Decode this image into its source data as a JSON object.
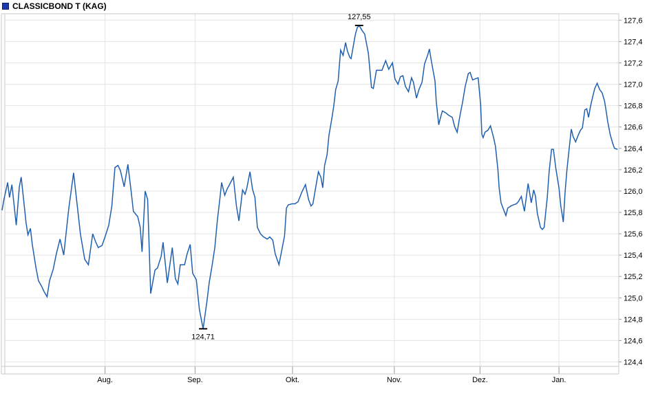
{
  "header": {
    "title": "CLASSICBOND T (KAG)",
    "legend_square_color": "#1c3aae"
  },
  "styles": {
    "grid_color": "#e3e3e3",
    "frame_color": "#c9c9c9",
    "tick_color": "#9a9a9a",
    "axis_text_color": "#000000",
    "annotation_text_color": "#a0a0a0",
    "line_color": "#1f5fae",
    "background_color": "#ffffff"
  },
  "chart_data": {
    "type": "line",
    "title": "CLASSICBOND T (KAG)",
    "xlabel": "",
    "ylabel": "",
    "grid": true,
    "legend_position": "none",
    "y_axis": {
      "side": "right",
      "min": 124.4,
      "max": 127.6,
      "step": 0.2,
      "tick_labels_top_to_bottom": [
        "127,6",
        "127,4",
        "127,2",
        "127,0",
        "126,8",
        "126,6",
        "126,4",
        "126,2",
        "126,0",
        "125,8",
        "125,6",
        "125,4",
        "125,2",
        "125,0",
        "124,8",
        "124,6",
        "124,4"
      ]
    },
    "x_axis": {
      "labels": [
        "Aug.",
        "Sep.",
        "Okt.",
        "Nov.",
        "Dez.",
        "Jan."
      ],
      "positions_pct": [
        16.7,
        31.3,
        47.1,
        63.6,
        77.5,
        90.3
      ]
    },
    "annotations": {
      "max": {
        "label": "127,55",
        "value": 127.55,
        "t_pct": 57.9
      },
      "min": {
        "label": "124,71",
        "value": 124.71,
        "t_pct": 32.6
      }
    },
    "series": [
      {
        "name": "CLASSICBOND T (KAG)",
        "points": [
          [
            0.0,
            125.82
          ],
          [
            0.3,
            125.92
          ],
          [
            0.9,
            126.08
          ],
          [
            1.2,
            125.94
          ],
          [
            1.6,
            126.06
          ],
          [
            2.3,
            125.68
          ],
          [
            2.8,
            126.04
          ],
          [
            3.1,
            126.13
          ],
          [
            3.9,
            125.7
          ],
          [
            4.2,
            125.59
          ],
          [
            4.6,
            125.65
          ],
          [
            4.9,
            125.5
          ],
          [
            5.5,
            125.28
          ],
          [
            5.9,
            125.16
          ],
          [
            6.4,
            125.11
          ],
          [
            6.8,
            125.06
          ],
          [
            7.3,
            125.01
          ],
          [
            7.7,
            125.16
          ],
          [
            8.3,
            125.27
          ],
          [
            8.8,
            125.41
          ],
          [
            9.4,
            125.55
          ],
          [
            10.0,
            125.4
          ],
          [
            10.8,
            125.83
          ],
          [
            11.6,
            126.17
          ],
          [
            12.2,
            125.86
          ],
          [
            12.7,
            125.6
          ],
          [
            13.4,
            125.36
          ],
          [
            14.0,
            125.31
          ],
          [
            14.7,
            125.6
          ],
          [
            15.2,
            125.52
          ],
          [
            15.6,
            125.47
          ],
          [
            16.2,
            125.49
          ],
          [
            16.7,
            125.57
          ],
          [
            17.3,
            125.68
          ],
          [
            17.8,
            125.86
          ],
          [
            18.3,
            126.22
          ],
          [
            18.8,
            126.24
          ],
          [
            19.2,
            126.19
          ],
          [
            19.8,
            126.04
          ],
          [
            20.4,
            126.25
          ],
          [
            20.9,
            126.01
          ],
          [
            21.3,
            125.81
          ],
          [
            22.0,
            125.76
          ],
          [
            22.4,
            125.66
          ],
          [
            22.7,
            125.43
          ],
          [
            23.2,
            126.0
          ],
          [
            23.6,
            125.92
          ],
          [
            24.1,
            125.04
          ],
          [
            24.8,
            125.26
          ],
          [
            25.2,
            125.28
          ],
          [
            25.8,
            125.39
          ],
          [
            26.1,
            125.52
          ],
          [
            26.8,
            125.14
          ],
          [
            27.6,
            125.47
          ],
          [
            28.1,
            125.18
          ],
          [
            28.5,
            125.13
          ],
          [
            28.9,
            125.31
          ],
          [
            29.6,
            125.31
          ],
          [
            30.0,
            125.41
          ],
          [
            30.5,
            125.5
          ],
          [
            30.9,
            125.23
          ],
          [
            31.5,
            125.17
          ],
          [
            32.0,
            124.89
          ],
          [
            32.6,
            124.71
          ],
          [
            33.2,
            124.96
          ],
          [
            33.6,
            125.15
          ],
          [
            34.0,
            125.28
          ],
          [
            34.5,
            125.47
          ],
          [
            34.9,
            125.72
          ],
          [
            35.3,
            125.92
          ],
          [
            35.6,
            126.08
          ],
          [
            36.1,
            125.96
          ],
          [
            36.5,
            126.02
          ],
          [
            36.8,
            126.05
          ],
          [
            37.5,
            126.13
          ],
          [
            38.0,
            125.86
          ],
          [
            38.4,
            125.72
          ],
          [
            39.0,
            126.01
          ],
          [
            39.4,
            125.97
          ],
          [
            39.7,
            126.03
          ],
          [
            40.2,
            126.18
          ],
          [
            40.6,
            126.02
          ],
          [
            41.0,
            125.94
          ],
          [
            41.4,
            125.66
          ],
          [
            41.9,
            125.6
          ],
          [
            42.4,
            125.57
          ],
          [
            43.0,
            125.55
          ],
          [
            43.4,
            125.57
          ],
          [
            43.9,
            125.54
          ],
          [
            44.3,
            125.41
          ],
          [
            44.9,
            125.31
          ],
          [
            45.3,
            125.43
          ],
          [
            45.8,
            125.58
          ],
          [
            46.1,
            125.84
          ],
          [
            46.4,
            125.87
          ],
          [
            47.0,
            125.88
          ],
          [
            47.5,
            125.88
          ],
          [
            48.0,
            125.9
          ],
          [
            48.6,
            125.99
          ],
          [
            49.2,
            126.06
          ],
          [
            49.7,
            125.92
          ],
          [
            50.1,
            125.86
          ],
          [
            50.4,
            125.88
          ],
          [
            50.9,
            126.05
          ],
          [
            51.3,
            126.18
          ],
          [
            51.7,
            126.13
          ],
          [
            52.0,
            126.03
          ],
          [
            52.3,
            126.24
          ],
          [
            52.7,
            126.34
          ],
          [
            53.0,
            126.52
          ],
          [
            53.5,
            126.69
          ],
          [
            53.8,
            126.8
          ],
          [
            54.1,
            126.95
          ],
          [
            54.5,
            127.03
          ],
          [
            54.7,
            127.18
          ],
          [
            54.9,
            127.32
          ],
          [
            55.3,
            127.27
          ],
          [
            55.7,
            127.39
          ],
          [
            56.0,
            127.31
          ],
          [
            56.4,
            127.25
          ],
          [
            56.6,
            127.24
          ],
          [
            56.9,
            127.34
          ],
          [
            57.3,
            127.47
          ],
          [
            57.6,
            127.53
          ],
          [
            57.9,
            127.55
          ],
          [
            58.4,
            127.5
          ],
          [
            58.8,
            127.47
          ],
          [
            59.4,
            127.29
          ],
          [
            59.9,
            126.97
          ],
          [
            60.2,
            126.96
          ],
          [
            60.7,
            127.13
          ],
          [
            61.2,
            127.13
          ],
          [
            61.6,
            127.13
          ],
          [
            62.2,
            127.22
          ],
          [
            62.7,
            127.14
          ],
          [
            63.3,
            127.2
          ],
          [
            63.7,
            127.05
          ],
          [
            64.2,
            127.0
          ],
          [
            64.6,
            127.07
          ],
          [
            65.0,
            127.08
          ],
          [
            65.4,
            126.98
          ],
          [
            65.9,
            126.93
          ],
          [
            66.4,
            127.06
          ],
          [
            66.7,
            127.02
          ],
          [
            67.2,
            126.87
          ],
          [
            67.6,
            126.95
          ],
          [
            68.1,
            127.02
          ],
          [
            68.5,
            127.19
          ],
          [
            69.0,
            127.27
          ],
          [
            69.3,
            127.33
          ],
          [
            69.6,
            127.22
          ],
          [
            70.2,
            127.03
          ],
          [
            70.4,
            126.84
          ],
          [
            70.8,
            126.62
          ],
          [
            71.1,
            126.69
          ],
          [
            71.4,
            126.75
          ],
          [
            72.0,
            126.73
          ],
          [
            72.4,
            126.71
          ],
          [
            73.0,
            126.69
          ],
          [
            73.4,
            126.6
          ],
          [
            73.8,
            126.55
          ],
          [
            74.2,
            126.69
          ],
          [
            74.7,
            126.84
          ],
          [
            75.1,
            126.98
          ],
          [
            75.6,
            127.1
          ],
          [
            75.9,
            127.11
          ],
          [
            76.3,
            127.04
          ],
          [
            76.7,
            127.05
          ],
          [
            77.2,
            127.06
          ],
          [
            77.6,
            126.81
          ],
          [
            77.8,
            126.53
          ],
          [
            78.0,
            126.5
          ],
          [
            78.3,
            126.55
          ],
          [
            78.8,
            126.57
          ],
          [
            79.2,
            126.61
          ],
          [
            79.7,
            126.5
          ],
          [
            80.0,
            126.42
          ],
          [
            80.4,
            126.2
          ],
          [
            80.6,
            126.03
          ],
          [
            80.9,
            125.89
          ],
          [
            81.3,
            125.83
          ],
          [
            81.7,
            125.77
          ],
          [
            82.0,
            125.84
          ],
          [
            82.5,
            125.86
          ],
          [
            82.9,
            125.87
          ],
          [
            83.4,
            125.88
          ],
          [
            83.7,
            125.9
          ],
          [
            84.2,
            125.95
          ],
          [
            84.7,
            125.81
          ],
          [
            85.3,
            126.07
          ],
          [
            85.8,
            125.89
          ],
          [
            86.2,
            126.01
          ],
          [
            86.5,
            125.95
          ],
          [
            86.8,
            125.79
          ],
          [
            87.3,
            125.66
          ],
          [
            87.6,
            125.64
          ],
          [
            87.9,
            125.66
          ],
          [
            88.4,
            125.94
          ],
          [
            88.7,
            126.18
          ],
          [
            89.1,
            126.39
          ],
          [
            89.4,
            126.39
          ],
          [
            89.8,
            126.21
          ],
          [
            90.3,
            126.03
          ],
          [
            90.6,
            125.86
          ],
          [
            91.0,
            125.71
          ],
          [
            91.3,
            125.99
          ],
          [
            91.6,
            126.2
          ],
          [
            92.0,
            126.42
          ],
          [
            92.3,
            126.58
          ],
          [
            92.6,
            126.51
          ],
          [
            93.0,
            126.46
          ],
          [
            93.4,
            126.52
          ],
          [
            93.8,
            126.57
          ],
          [
            94.1,
            126.59
          ],
          [
            94.5,
            126.76
          ],
          [
            94.8,
            126.77
          ],
          [
            95.1,
            126.69
          ],
          [
            95.4,
            126.79
          ],
          [
            95.8,
            126.89
          ],
          [
            96.1,
            126.96
          ],
          [
            96.5,
            127.01
          ],
          [
            96.9,
            126.95
          ],
          [
            97.3,
            126.92
          ],
          [
            97.7,
            126.84
          ],
          [
            98.0,
            126.73
          ],
          [
            98.2,
            126.65
          ],
          [
            98.6,
            126.53
          ],
          [
            99.0,
            126.45
          ],
          [
            99.3,
            126.4
          ],
          [
            99.8,
            126.39
          ]
        ]
      }
    ]
  }
}
